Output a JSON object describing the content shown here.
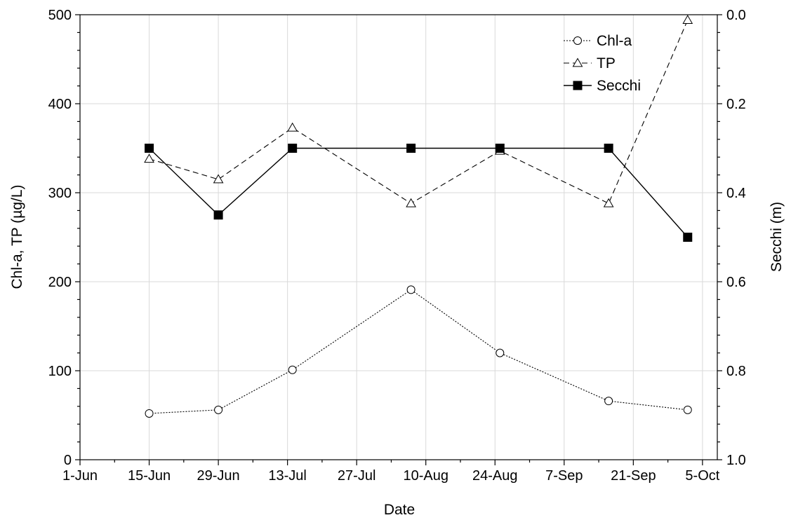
{
  "chart_data": {
    "type": "line",
    "xlabel": "Date",
    "ylabel": "Chl-a, TP (µg/L)",
    "y2label": "Secchi (m)",
    "x_ticks": [
      "1-Jun",
      "15-Jun",
      "29-Jun",
      "13-Jul",
      "27-Jul",
      "10-Aug",
      "24-Aug",
      "7-Sep",
      "21-Sep",
      "5-Oct"
    ],
    "x_tick_dates": [
      "2000-06-01",
      "2000-06-15",
      "2000-06-29",
      "2000-07-13",
      "2000-07-27",
      "2000-08-10",
      "2000-08-24",
      "2000-09-07",
      "2000-09-21",
      "2000-10-05"
    ],
    "xlim": [
      "2000-06-01",
      "2000-10-08"
    ],
    "ylim": [
      0,
      500
    ],
    "y_ticks": [
      0,
      100,
      200,
      300,
      400,
      500
    ],
    "y2lim": [
      1.0,
      0.0
    ],
    "y2_ticks": [
      1.0,
      0.8,
      0.6,
      0.4,
      0.2,
      0.0
    ],
    "y2_tick_labels": [
      "1.0",
      "0.8",
      "0.6",
      "0.4",
      "0.2",
      "0.0"
    ],
    "grid": true,
    "legend_position": "top-right",
    "series": [
      {
        "name": "Chl-a",
        "axis": "left",
        "marker": "circle",
        "line_style": "dotted",
        "x": [
          "2000-06-15",
          "2000-06-29",
          "2000-07-14",
          "2000-08-07",
          "2000-08-25",
          "2000-09-16",
          "2000-10-02"
        ],
        "values": [
          52,
          56,
          101,
          191,
          120,
          66,
          56
        ]
      },
      {
        "name": "TP",
        "axis": "left",
        "marker": "triangle",
        "line_style": "dashed",
        "x": [
          "2000-06-15",
          "2000-06-29",
          "2000-07-14",
          "2000-08-07",
          "2000-08-25",
          "2000-09-16",
          "2000-10-02"
        ],
        "values": [
          338,
          315,
          373,
          288,
          347,
          288,
          494
        ]
      },
      {
        "name": "Secchi",
        "axis": "right",
        "marker": "square",
        "line_style": "solid",
        "x": [
          "2000-06-15",
          "2000-06-29",
          "2000-07-14",
          "2000-08-07",
          "2000-08-25",
          "2000-09-16",
          "2000-10-02"
        ],
        "values": [
          0.3,
          0.45,
          0.3,
          0.3,
          0.3,
          0.3,
          0.5
        ]
      }
    ]
  }
}
